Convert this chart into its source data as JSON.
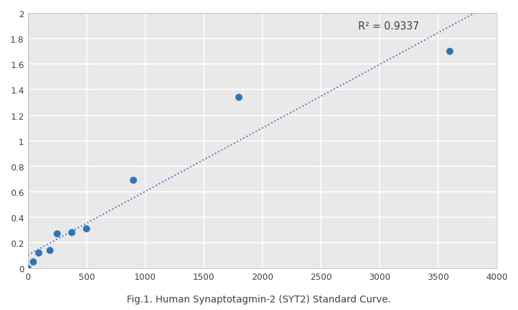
{
  "x": [
    0,
    46,
    93,
    188,
    250,
    375,
    500,
    900,
    1800,
    3600
  ],
  "y": [
    0.0,
    0.05,
    0.12,
    0.14,
    0.27,
    0.28,
    0.31,
    0.69,
    1.34,
    1.7
  ],
  "r_squared_label": "R² = 0.9337",
  "r_squared_x": 2820,
  "r_squared_y": 1.9,
  "trendline_x_start": 0,
  "trendline_x_end": 3900,
  "dot_color": "#2E75B6",
  "trendline_color": "#4472C4",
  "background_color": "#ffffff",
  "plot_background_color": "#e9e9e9",
  "grid_color": "#ffffff",
  "xlim": [
    0,
    4000
  ],
  "ylim": [
    0,
    2.0
  ],
  "xticks": [
    0,
    500,
    1000,
    1500,
    2000,
    2500,
    3000,
    3500,
    4000
  ],
  "yticks": [
    0,
    0.2,
    0.4,
    0.6,
    0.8,
    1.0,
    1.2,
    1.4,
    1.6,
    1.8,
    2.0
  ],
  "marker_size": 55,
  "trendline_linewidth": 1.4,
  "tick_fontsize": 9,
  "annotation_fontsize": 10.5,
  "title": "Fig.1. Human Synaptotagmin-2 (SYT2) Standard Curve.",
  "title_fontsize": 10,
  "spine_color": "#c0c0c0"
}
